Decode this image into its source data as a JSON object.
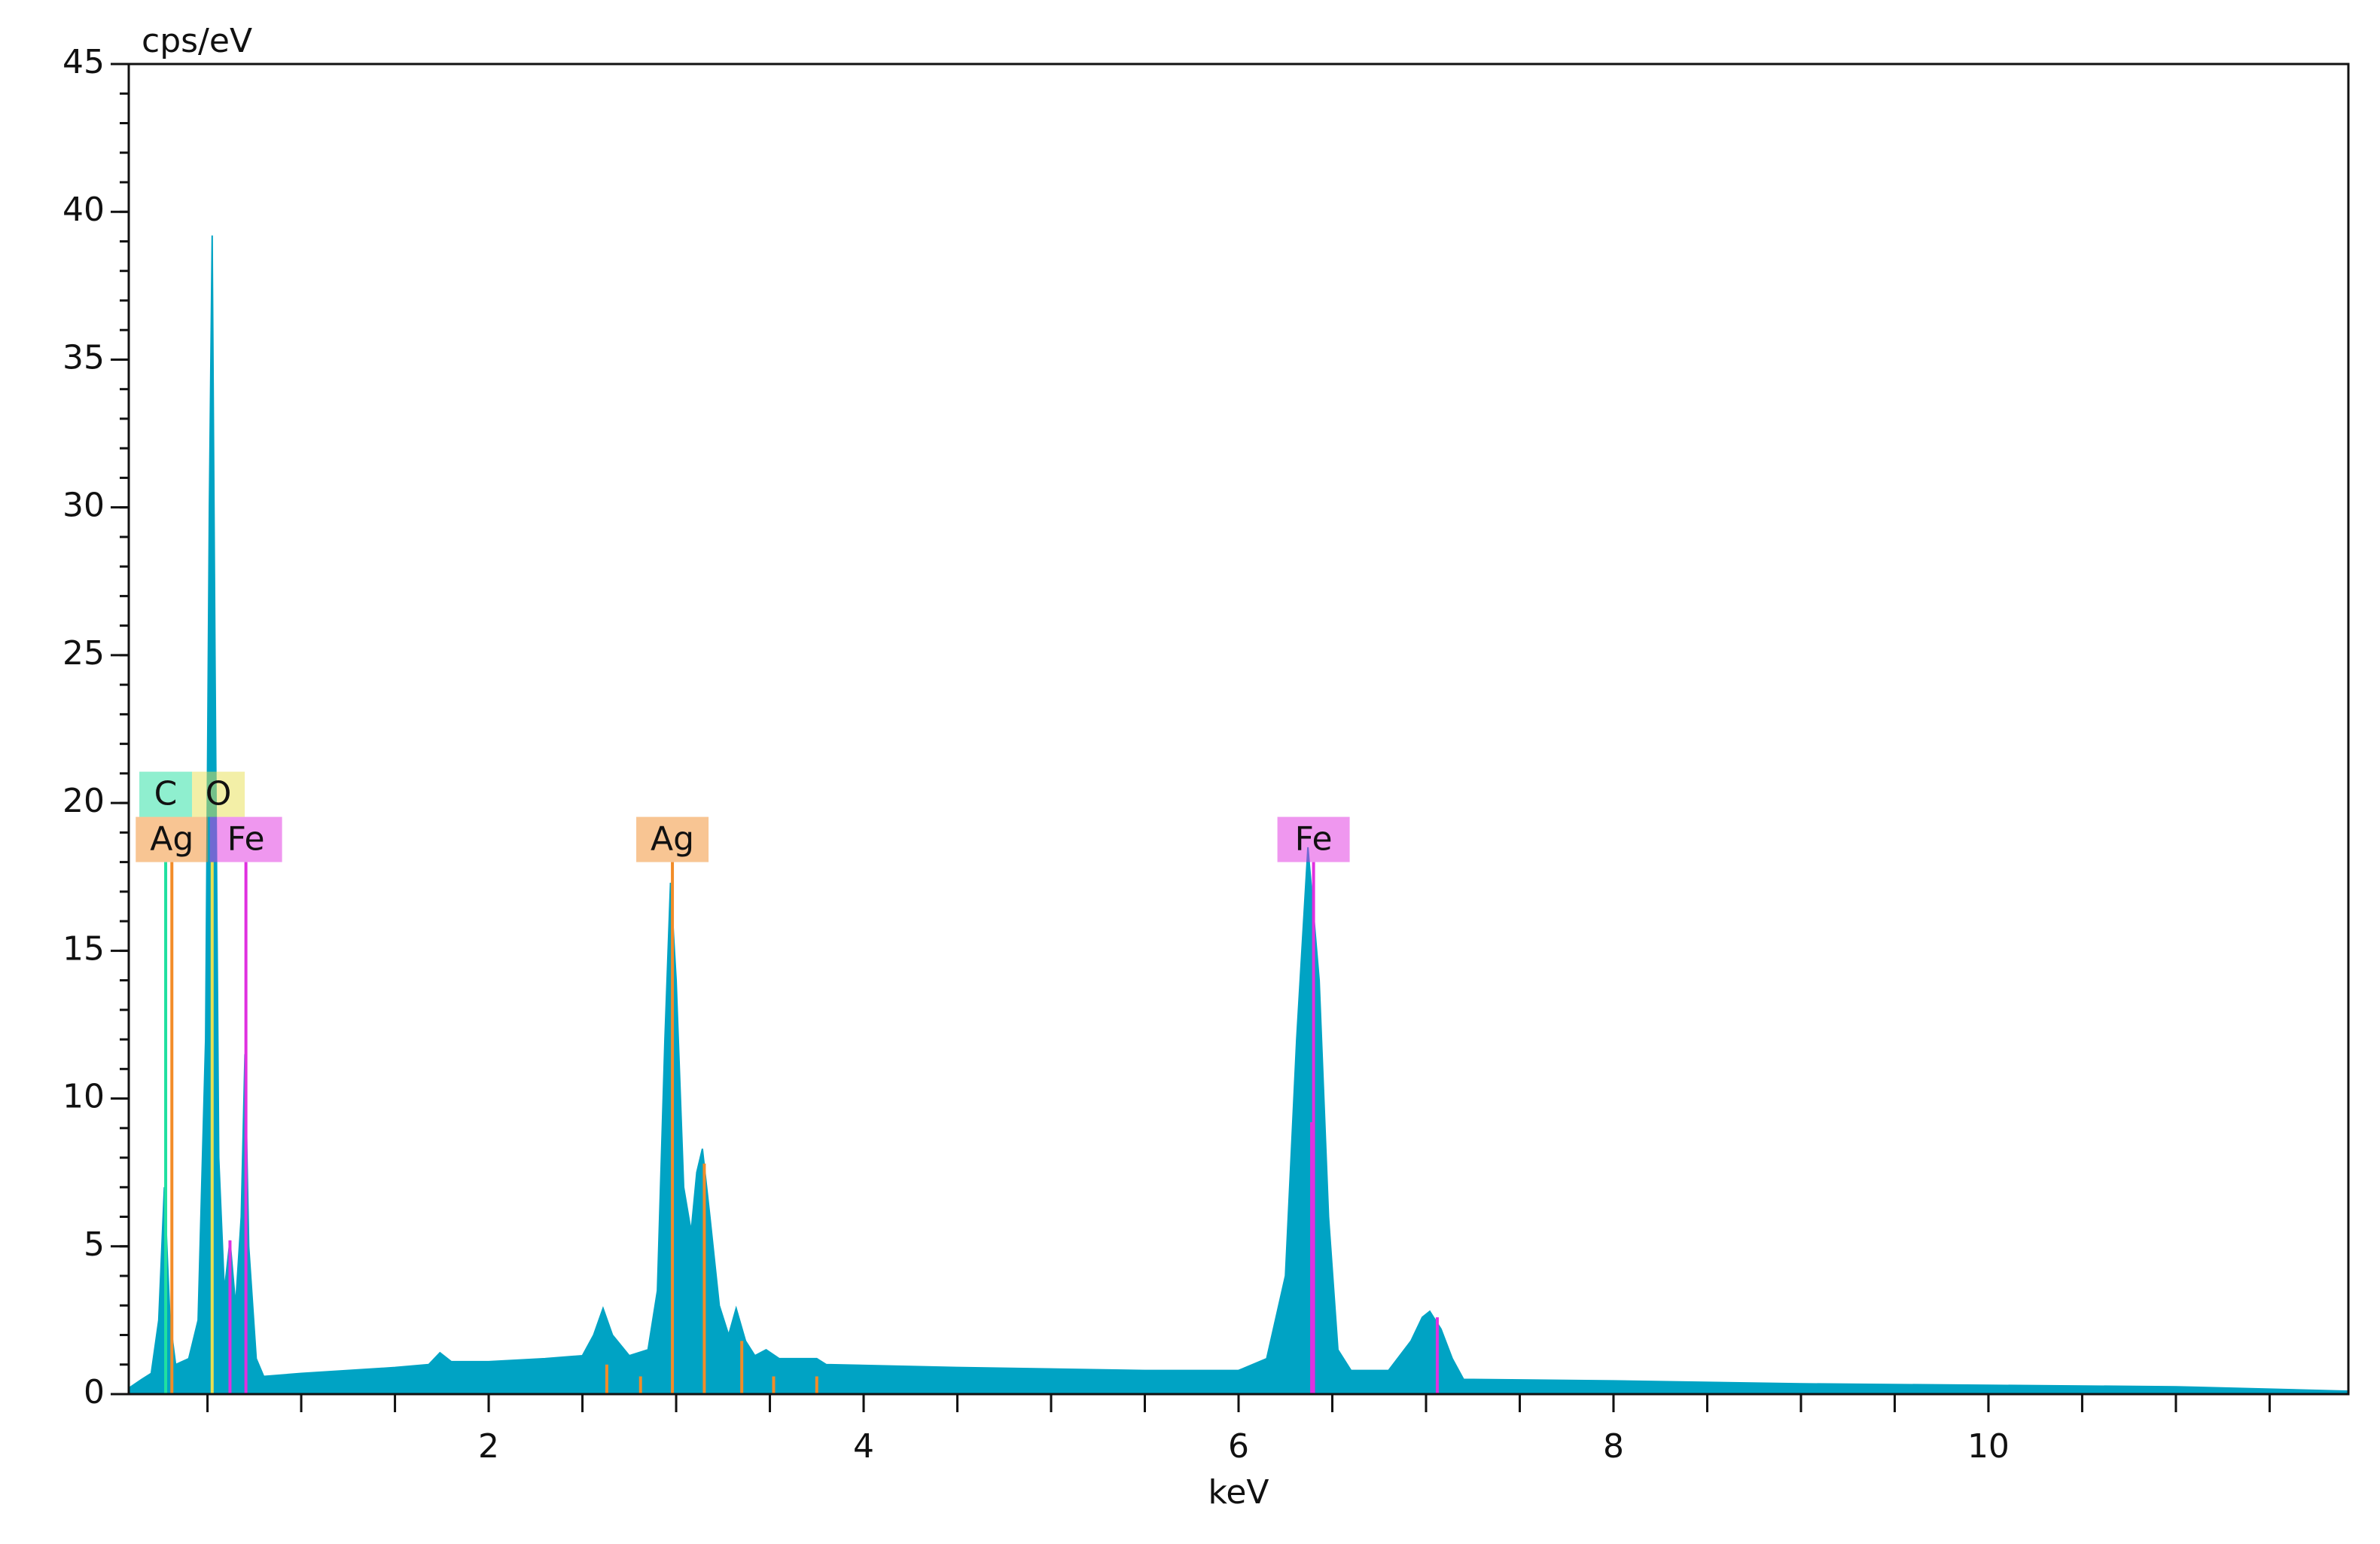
{
  "chart_data": {
    "type": "area",
    "y_label": "cps/eV",
    "x_label": "keV",
    "color": "#00a3c4",
    "xlim": [
      0.08,
      11.92
    ],
    "ylim": [
      0,
      45
    ],
    "xticks": [
      2,
      4,
      6,
      8,
      10
    ],
    "yticks": [
      0,
      5,
      10,
      15,
      20,
      25,
      30,
      35,
      40,
      45
    ],
    "x_minor_step": 0.5,
    "y_minor_step": 1,
    "x": [
      0.08,
      0.15,
      0.2,
      0.24,
      0.27,
      0.3,
      0.33,
      0.4,
      0.45,
      0.49,
      0.51,
      0.525,
      0.54,
      0.56,
      0.59,
      0.62,
      0.65,
      0.68,
      0.7,
      0.72,
      0.76,
      0.8,
      1.0,
      1.5,
      1.68,
      1.74,
      1.8,
      2.0,
      2.3,
      2.5,
      2.56,
      2.61,
      2.66,
      2.75,
      2.85,
      2.9,
      2.94,
      2.97,
      3.0,
      3.04,
      3.08,
      3.11,
      3.14,
      3.18,
      3.23,
      3.28,
      3.32,
      3.37,
      3.42,
      3.48,
      3.55,
      3.65,
      3.75,
      3.8,
      4.5,
      5.5,
      6.0,
      6.15,
      6.25,
      6.31,
      6.37,
      6.43,
      6.48,
      6.53,
      6.6,
      6.8,
      6.92,
      6.98,
      7.02,
      7.08,
      7.14,
      7.2,
      8.0,
      9.0,
      10.0,
      11.0,
      11.92
    ],
    "values": [
      0.2,
      0.5,
      0.7,
      2.5,
      7.0,
      2.5,
      1.0,
      1.2,
      2.5,
      12.0,
      30.0,
      39.2,
      25.0,
      8.0,
      3.5,
      5.2,
      3.0,
      6.0,
      11.5,
      5.0,
      1.2,
      0.6,
      0.7,
      0.9,
      1.0,
      1.4,
      1.1,
      1.1,
      1.2,
      1.3,
      2.0,
      2.9,
      2.0,
      1.3,
      1.5,
      3.5,
      12.0,
      17.3,
      14.0,
      7.0,
      5.5,
      7.5,
      8.3,
      6.0,
      3.0,
      2.0,
      2.9,
      1.8,
      1.3,
      1.5,
      1.2,
      1.2,
      1.2,
      1.0,
      0.9,
      0.8,
      0.8,
      1.2,
      4.0,
      12.0,
      18.5,
      14.0,
      6.0,
      1.5,
      0.8,
      0.8,
      1.8,
      2.6,
      2.8,
      2.2,
      1.2,
      0.5,
      0.45,
      0.35,
      0.3,
      0.25,
      0.1
    ],
    "markers": [
      {
        "label": "Ag",
        "color": "#f28c28",
        "x": 0.31,
        "height": 18
      },
      {
        "label": "Fe",
        "color": "#e030e0",
        "x": 0.705,
        "height": 18
      },
      {
        "label": "Ag",
        "color": "#f28c28",
        "x": 2.98,
        "height": 18
      },
      {
        "label": "Fe",
        "color": "#e030e0",
        "x": 6.4,
        "height": 18
      },
      {
        "label": "C",
        "color": "#20e0a0",
        "x": 0.277,
        "height": 18
      },
      {
        "label": "O",
        "color": "#e8e050",
        "x": 0.525,
        "height": 18
      }
    ],
    "lines": [
      {
        "color": "#f28c28",
        "x": 3.15,
        "height": 7.8
      },
      {
        "color": "#f28c28",
        "x": 3.35,
        "height": 1.8
      },
      {
        "color": "#f28c28",
        "x": 2.63,
        "height": 1.0
      },
      {
        "color": "#f28c28",
        "x": 2.81,
        "height": 0.6
      },
      {
        "color": "#f28c28",
        "x": 3.52,
        "height": 0.6
      },
      {
        "color": "#f28c28",
        "x": 3.75,
        "height": 0.6
      },
      {
        "color": "#e030e0",
        "x": 6.39,
        "height": 9.2
      },
      {
        "color": "#e030e0",
        "x": 7.06,
        "height": 2.6
      },
      {
        "color": "#e030e0",
        "x": 0.62,
        "height": 5.2
      }
    ]
  }
}
